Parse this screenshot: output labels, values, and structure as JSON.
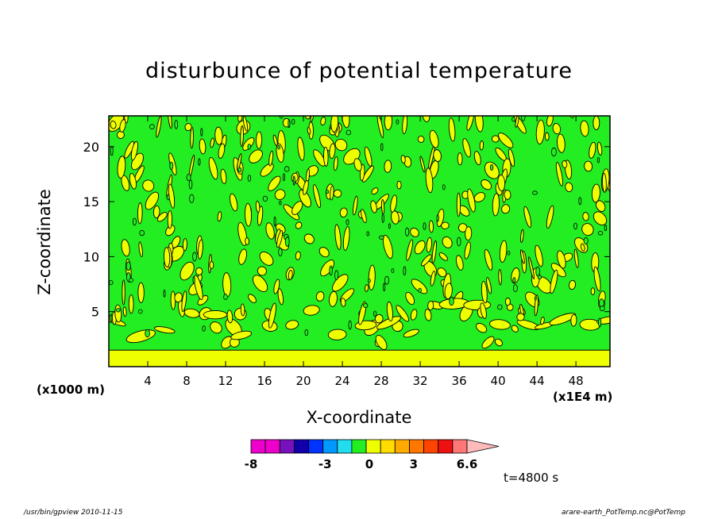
{
  "chart_data": {
    "type": "heatmap",
    "title": "disturbunce of potential temperature",
    "xlabel": "X-coordinate",
    "ylabel": "Z-coordinate",
    "x_unit": "(x1E4 m)",
    "y_unit": "(x1000 m)",
    "xlim": [
      0,
      51.5
    ],
    "ylim": [
      0,
      22.8
    ],
    "x_ticks": [
      4,
      8,
      12,
      16,
      20,
      24,
      28,
      32,
      36,
      40,
      44,
      48
    ],
    "y_ticks": [
      5,
      10,
      15,
      20
    ],
    "background_level_color": "#22ee22",
    "positive_level_color": "#eeff00",
    "surface_band_top_z": 1.5,
    "plume_centers_x": [
      12,
      28,
      40
    ],
    "colorbar": {
      "tick_labels": [
        "-8",
        "-3",
        "0",
        "3",
        "6.6"
      ],
      "tick_values": [
        -8,
        -3,
        0,
        3,
        6.6
      ],
      "colors": [
        "#ee00cc",
        "#ee00cc",
        "#7711bb",
        "#1100aa",
        "#0033ff",
        "#0099ff",
        "#22ddee",
        "#22ee22",
        "#eeff00",
        "#ffdd00",
        "#ffaa00",
        "#ff7700",
        "#ff4400",
        "#ee1111",
        "#ff7777",
        "#ffbbbb"
      ],
      "extend": "max"
    },
    "time_label": "t=4800 s"
  },
  "footer": {
    "left": "/usr/bin/gpview   2010-11-15",
    "right": "arare-earth_PotTemp.nc@PotTemp"
  }
}
